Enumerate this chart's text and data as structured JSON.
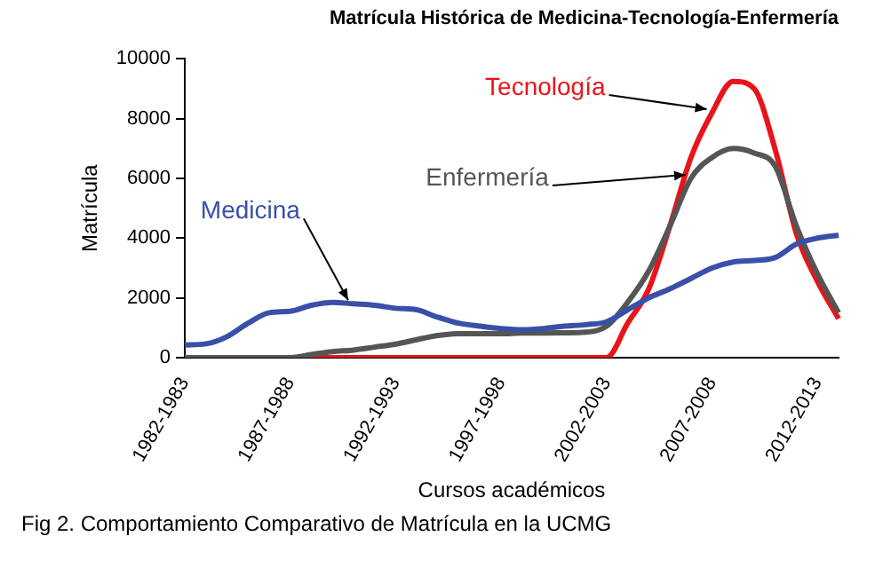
{
  "chart_data": {
    "type": "line",
    "title": "Matrícula Histórica de Medicina-Tecnología-Enfermería",
    "xlabel": "Cursos académicos",
    "ylabel": "Matrícula",
    "categories": [
      "1982-1983",
      null,
      null,
      null,
      null,
      "1987-1988",
      null,
      null,
      null,
      null,
      "1992-1993",
      null,
      null,
      null,
      null,
      "1997-1998",
      null,
      null,
      null,
      null,
      "2002-2003",
      null,
      null,
      null,
      null,
      "2007-2008",
      null,
      null,
      null,
      null,
      "2012-2013",
      null
    ],
    "series": [
      {
        "name": "Medicina",
        "color": "#3a4fa8",
        "values": [
          420,
          460,
          700,
          1150,
          1500,
          1550,
          1750,
          1850,
          1800,
          1750,
          1650,
          1600,
          1350,
          1150,
          1050,
          970,
          930,
          970,
          1050,
          1100,
          1200,
          1600,
          2000,
          2300,
          2650,
          3000,
          3200,
          3250,
          3350,
          3800,
          4000,
          4100
        ]
      },
      {
        "name": "Enfermería",
        "color": "#555555",
        "values": [
          0,
          0,
          0,
          0,
          0,
          0,
          100,
          200,
          250,
          350,
          450,
          600,
          740,
          800,
          800,
          800,
          820,
          820,
          830,
          850,
          1050,
          1850,
          2900,
          4400,
          6000,
          6700,
          7000,
          6850,
          6400,
          4400,
          2800,
          1500
        ]
      },
      {
        "name": "Tecnología",
        "color": "#e8141b",
        "values": [
          null,
          null,
          null,
          null,
          null,
          0,
          0,
          0,
          0,
          0,
          0,
          0,
          0,
          0,
          0,
          0,
          0,
          0,
          0,
          0,
          0,
          1150,
          2300,
          4400,
          6700,
          8200,
          9250,
          9000,
          6950,
          4150,
          2550,
          1300
        ]
      }
    ],
    "ylim": [
      0,
      10000
    ],
    "yticks": [
      0,
      2000,
      4000,
      6000,
      8000,
      10000
    ],
    "grid": false,
    "legend": false,
    "marker": "none",
    "line_style": "solid",
    "annotations": [
      "Fig 2. Comportamiento Comparativo de Matrícula en la UCMG"
    ]
  }
}
